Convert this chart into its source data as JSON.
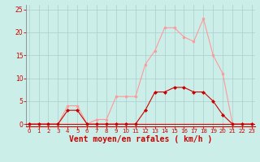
{
  "x": [
    0,
    1,
    2,
    3,
    4,
    5,
    6,
    7,
    8,
    9,
    10,
    11,
    12,
    13,
    14,
    15,
    16,
    17,
    18,
    19,
    20,
    21,
    22,
    23
  ],
  "y_moyen": [
    0,
    0,
    0,
    0,
    3,
    3,
    0,
    0,
    0,
    0,
    0,
    0,
    3,
    7,
    7,
    8,
    8,
    7,
    7,
    5,
    2,
    0,
    0,
    0
  ],
  "y_rafales": [
    0,
    0,
    0,
    0,
    4,
    4,
    0,
    1,
    1,
    6,
    6,
    6,
    13,
    16,
    21,
    21,
    19,
    18,
    23,
    15,
    11,
    0,
    0,
    0
  ],
  "bg_color": "#cceee8",
  "grid_color": "#aacccc",
  "line_color_moyen": "#cc0000",
  "line_color_rafales": "#ff9999",
  "xlabel": "Vent moyen/en rafales ( km/h )",
  "yticks": [
    0,
    5,
    10,
    15,
    20,
    25
  ],
  "xticks": [
    0,
    1,
    2,
    3,
    4,
    5,
    6,
    7,
    8,
    9,
    10,
    11,
    12,
    13,
    14,
    15,
    16,
    17,
    18,
    19,
    20,
    21,
    22,
    23
  ],
  "ylim": [
    -0.5,
    26
  ],
  "xlim": [
    -0.3,
    23.3
  ],
  "xlabel_color": "#cc0000",
  "tick_color": "#cc0000",
  "axis_color": "#cc0000",
  "left_spine_color": "#888888",
  "xlabel_fontsize": 7,
  "tick_fontsize": 5,
  "ytick_fontsize": 5.5,
  "linewidth": 0.8,
  "markersize": 2.0
}
